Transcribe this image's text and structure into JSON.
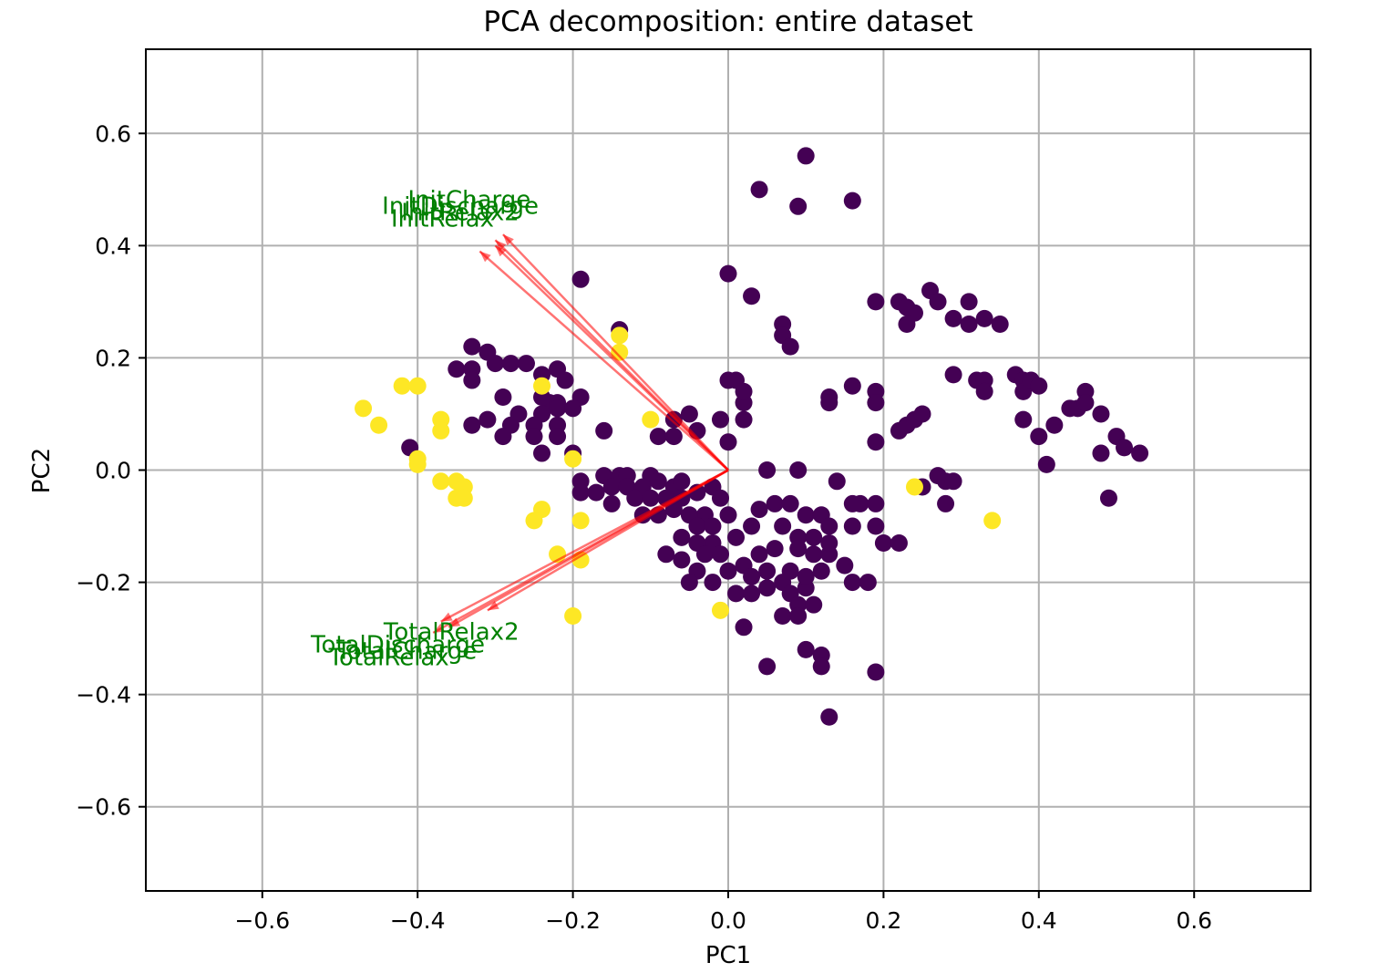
{
  "chart_data": {
    "type": "scatter",
    "title": "PCA decomposition: entire dataset",
    "xlabel": "PC1",
    "ylabel": "PC2",
    "xlim": [
      -0.75,
      0.75
    ],
    "ylim": [
      -0.75,
      0.75
    ],
    "xticks": [
      -0.6,
      -0.4,
      -0.2,
      0.0,
      0.2,
      0.4,
      0.6
    ],
    "yticks": [
      -0.6,
      -0.4,
      -0.2,
      0.0,
      0.2,
      0.4,
      0.6
    ],
    "xtick_labels": [
      "−0.6",
      "−0.4",
      "−0.2",
      "0.0",
      "0.2",
      "0.4",
      "0.6"
    ],
    "ytick_labels": [
      "−0.6",
      "−0.4",
      "−0.2",
      "0.0",
      "0.2",
      "0.4",
      "0.6"
    ],
    "grid": true,
    "colors": {
      "class_0": "#440154",
      "class_1": "#fde725",
      "arrow": "#ff0000",
      "loading_label": "#008000",
      "grid": "#b0b0b0"
    },
    "points_class_0": [
      [
        0.1,
        0.56
      ],
      [
        0.04,
        0.5
      ],
      [
        0.09,
        0.47
      ],
      [
        0.16,
        0.48
      ],
      [
        0.0,
        0.35
      ],
      [
        0.03,
        0.31
      ],
      [
        0.07,
        0.26
      ],
      [
        0.07,
        0.24
      ],
      [
        0.08,
        0.22
      ],
      [
        -0.19,
        0.34
      ],
      [
        -0.14,
        0.25
      ],
      [
        -0.33,
        0.22
      ],
      [
        -0.31,
        0.21
      ],
      [
        -0.3,
        0.19
      ],
      [
        -0.28,
        0.19
      ],
      [
        -0.26,
        0.19
      ],
      [
        -0.35,
        0.18
      ],
      [
        -0.33,
        0.18
      ],
      [
        -0.33,
        0.16
      ],
      [
        -0.24,
        0.17
      ],
      [
        -0.22,
        0.18
      ],
      [
        -0.21,
        0.16
      ],
      [
        -0.29,
        0.13
      ],
      [
        -0.23,
        0.12
      ],
      [
        -0.22,
        0.12
      ],
      [
        -0.24,
        0.13
      ],
      [
        -0.19,
        0.13
      ],
      [
        -0.27,
        0.1
      ],
      [
        -0.24,
        0.1
      ],
      [
        -0.22,
        0.11
      ],
      [
        -0.2,
        0.11
      ],
      [
        -0.33,
        0.08
      ],
      [
        -0.31,
        0.09
      ],
      [
        -0.28,
        0.08
      ],
      [
        -0.25,
        0.08
      ],
      [
        -0.22,
        0.08
      ],
      [
        -0.29,
        0.06
      ],
      [
        -0.25,
        0.06
      ],
      [
        -0.22,
        0.06
      ],
      [
        -0.16,
        0.07
      ],
      [
        -0.24,
        0.03
      ],
      [
        -0.2,
        0.03
      ],
      [
        -0.41,
        0.04
      ],
      [
        -0.19,
        -0.02
      ],
      [
        -0.16,
        -0.01
      ],
      [
        -0.14,
        -0.01
      ],
      [
        -0.13,
        -0.01
      ],
      [
        -0.1,
        -0.01
      ],
      [
        -0.19,
        -0.04
      ],
      [
        -0.17,
        -0.04
      ],
      [
        -0.15,
        -0.03
      ],
      [
        -0.13,
        -0.03
      ],
      [
        -0.11,
        -0.03
      ],
      [
        -0.09,
        -0.02
      ],
      [
        -0.07,
        -0.03
      ],
      [
        -0.06,
        -0.02
      ],
      [
        -0.15,
        -0.06
      ],
      [
        -0.12,
        -0.05
      ],
      [
        -0.1,
        -0.05
      ],
      [
        -0.08,
        -0.05
      ],
      [
        -0.06,
        -0.05
      ],
      [
        -0.04,
        -0.04
      ],
      [
        -0.02,
        -0.03
      ],
      [
        -0.01,
        -0.05
      ],
      [
        -0.03,
        -0.08
      ],
      [
        -0.05,
        -0.08
      ],
      [
        -0.07,
        -0.07
      ],
      [
        -0.09,
        -0.08
      ],
      [
        -0.11,
        -0.08
      ],
      [
        -0.04,
        -0.1
      ],
      [
        -0.02,
        -0.1
      ],
      [
        0.0,
        -0.08
      ],
      [
        -0.02,
        -0.13
      ],
      [
        -0.04,
        -0.13
      ],
      [
        -0.06,
        -0.12
      ],
      [
        -0.08,
        -0.15
      ],
      [
        -0.06,
        -0.16
      ],
      [
        -0.03,
        -0.15
      ],
      [
        -0.01,
        -0.15
      ],
      [
        0.01,
        -0.12
      ],
      [
        -0.04,
        -0.18
      ],
      [
        -0.05,
        -0.2
      ],
      [
        -0.02,
        -0.2
      ],
      [
        0.0,
        -0.18
      ],
      [
        0.02,
        -0.17
      ],
      [
        0.04,
        -0.15
      ],
      [
        0.06,
        -0.14
      ],
      [
        0.05,
        -0.18
      ],
      [
        0.03,
        -0.19
      ],
      [
        0.01,
        -0.22
      ],
      [
        0.03,
        -0.22
      ],
      [
        0.05,
        -0.21
      ],
      [
        0.07,
        -0.2
      ],
      [
        0.08,
        -0.22
      ],
      [
        0.1,
        -0.21
      ],
      [
        0.09,
        -0.24
      ],
      [
        0.07,
        -0.26
      ],
      [
        0.09,
        -0.26
      ],
      [
        0.11,
        -0.24
      ],
      [
        0.07,
        -0.1
      ],
      [
        0.09,
        -0.12
      ],
      [
        0.11,
        -0.12
      ],
      [
        0.08,
        -0.18
      ],
      [
        0.1,
        -0.19
      ],
      [
        0.12,
        -0.18
      ],
      [
        0.13,
        -0.15
      ],
      [
        0.09,
        -0.14
      ],
      [
        0.11,
        -0.15
      ],
      [
        0.06,
        -0.06
      ],
      [
        0.08,
        -0.06
      ],
      [
        0.1,
        -0.08
      ],
      [
        0.12,
        -0.08
      ],
      [
        0.13,
        -0.1
      ],
      [
        0.04,
        -0.07
      ],
      [
        0.03,
        -0.1
      ],
      [
        0.02,
        -0.28
      ],
      [
        0.05,
        -0.35
      ],
      [
        0.1,
        -0.32
      ],
      [
        0.12,
        -0.33
      ],
      [
        0.12,
        -0.35
      ],
      [
        0.13,
        -0.44
      ],
      [
        0.19,
        -0.36
      ],
      [
        0.16,
        -0.2
      ],
      [
        0.18,
        -0.2
      ],
      [
        0.15,
        -0.17
      ],
      [
        0.13,
        -0.13
      ],
      [
        0.14,
        -0.02
      ],
      [
        0.17,
        -0.06
      ],
      [
        0.16,
        -0.06
      ],
      [
        0.19,
        -0.06
      ],
      [
        0.16,
        -0.1
      ],
      [
        0.19,
        -0.1
      ],
      [
        0.2,
        -0.13
      ],
      [
        0.22,
        -0.13
      ],
      [
        0.05,
        0.0
      ],
      [
        0.09,
        0.0
      ],
      [
        -0.05,
        0.1
      ],
      [
        -0.04,
        0.07
      ],
      [
        -0.01,
        0.09
      ],
      [
        0.02,
        0.09
      ],
      [
        0.02,
        0.12
      ],
      [
        0.0,
        0.16
      ],
      [
        0.01,
        0.16
      ],
      [
        0.02,
        0.14
      ],
      [
        -0.09,
        0.06
      ],
      [
        -0.07,
        0.06
      ],
      [
        0.0,
        0.05
      ],
      [
        -0.07,
        0.09
      ],
      [
        0.13,
        0.13
      ],
      [
        0.13,
        0.12
      ],
      [
        0.16,
        0.15
      ],
      [
        0.19,
        0.14
      ],
      [
        0.19,
        0.12
      ],
      [
        0.19,
        0.05
      ],
      [
        0.22,
        0.07
      ],
      [
        0.23,
        0.08
      ],
      [
        0.24,
        0.09
      ],
      [
        0.25,
        0.1
      ],
      [
        0.22,
        0.3
      ],
      [
        0.23,
        0.29
      ],
      [
        0.24,
        0.28
      ],
      [
        0.23,
        0.26
      ],
      [
        0.19,
        0.3
      ],
      [
        0.26,
        0.32
      ],
      [
        0.27,
        0.3
      ],
      [
        0.29,
        0.27
      ],
      [
        0.31,
        0.3
      ],
      [
        0.31,
        0.26
      ],
      [
        0.33,
        0.27
      ],
      [
        0.35,
        0.26
      ],
      [
        0.29,
        0.17
      ],
      [
        0.32,
        0.16
      ],
      [
        0.33,
        0.16
      ],
      [
        0.33,
        0.14
      ],
      [
        0.37,
        0.17
      ],
      [
        0.38,
        0.16
      ],
      [
        0.38,
        0.14
      ],
      [
        0.39,
        0.16
      ],
      [
        0.4,
        0.15
      ],
      [
        0.38,
        0.09
      ],
      [
        0.4,
        0.06
      ],
      [
        0.42,
        0.08
      ],
      [
        0.41,
        0.01
      ],
      [
        0.44,
        0.11
      ],
      [
        0.45,
        0.11
      ],
      [
        0.46,
        0.14
      ],
      [
        0.46,
        0.12
      ],
      [
        0.48,
        0.1
      ],
      [
        0.48,
        0.03
      ],
      [
        0.5,
        0.06
      ],
      [
        0.51,
        0.04
      ],
      [
        0.53,
        0.03
      ],
      [
        0.49,
        -0.05
      ],
      [
        0.27,
        -0.01
      ],
      [
        0.28,
        -0.02
      ],
      [
        0.29,
        -0.02
      ],
      [
        0.25,
        -0.03
      ],
      [
        0.28,
        -0.06
      ]
    ],
    "points_class_1": [
      [
        -0.47,
        0.11
      ],
      [
        -0.45,
        0.08
      ],
      [
        -0.42,
        0.15
      ],
      [
        -0.4,
        0.15
      ],
      [
        -0.4,
        0.02
      ],
      [
        -0.4,
        0.01
      ],
      [
        -0.37,
        0.09
      ],
      [
        -0.37,
        0.07
      ],
      [
        -0.37,
        -0.02
      ],
      [
        -0.35,
        -0.02
      ],
      [
        -0.34,
        -0.03
      ],
      [
        -0.35,
        -0.05
      ],
      [
        -0.34,
        -0.05
      ],
      [
        -0.24,
        0.15
      ],
      [
        -0.14,
        0.24
      ],
      [
        -0.14,
        0.21
      ],
      [
        -0.1,
        0.09
      ],
      [
        -0.2,
        0.02
      ],
      [
        -0.24,
        -0.07
      ],
      [
        -0.25,
        -0.09
      ],
      [
        -0.19,
        -0.09
      ],
      [
        -0.22,
        -0.15
      ],
      [
        -0.19,
        -0.16
      ],
      [
        -0.2,
        -0.26
      ],
      [
        -0.01,
        -0.25
      ],
      [
        0.24,
        -0.03
      ],
      [
        0.34,
        -0.09
      ]
    ],
    "loadings": [
      {
        "label": "InitCharge",
        "x": -0.29,
        "y": 0.42
      },
      {
        "label": "InitDischarge",
        "x": -0.3,
        "y": 0.41
      },
      {
        "label": "InitRelax2",
        "x": -0.3,
        "y": 0.4
      },
      {
        "label": "InitRelax",
        "x": -0.32,
        "y": 0.39
      },
      {
        "label": "TotalRelax2",
        "x": -0.31,
        "y": -0.25
      },
      {
        "label": "TotalCharge",
        "x": -0.36,
        "y": -0.28
      },
      {
        "label": "TotalDischarge",
        "x": -0.37,
        "y": -0.27
      },
      {
        "label": "TotalRelax",
        "x": -0.38,
        "y": -0.29
      }
    ]
  }
}
